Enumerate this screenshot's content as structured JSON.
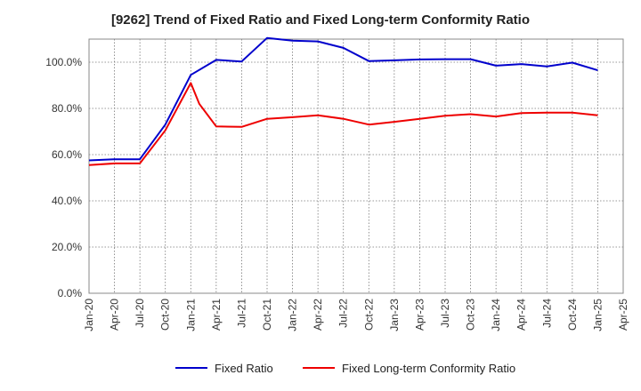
{
  "chart_data": {
    "type": "line",
    "title": "[9262]  Trend of Fixed Ratio and Fixed Long-term Conformity Ratio",
    "xlabel": "",
    "ylabel": "",
    "ylim": [
      0,
      110
    ],
    "yticks": [
      0,
      20,
      40,
      60,
      80,
      100
    ],
    "ytick_labels": [
      "0.0%",
      "20.0%",
      "40.0%",
      "60.0%",
      "80.0%",
      "100.0%"
    ],
    "xticks": [
      "Jan-20",
      "Apr-20",
      "Jul-20",
      "Oct-20",
      "Jan-21",
      "Apr-21",
      "Jul-21",
      "Oct-21",
      "Jan-22",
      "Apr-22",
      "Jul-22",
      "Oct-22",
      "Jan-23",
      "Apr-23",
      "Jul-23",
      "Oct-23",
      "Jan-24",
      "Apr-24",
      "Jul-24",
      "Oct-24",
      "Jan-25",
      "Apr-25"
    ],
    "grid": true,
    "legend_position": "bottom",
    "series": [
      {
        "name": "Fixed Ratio",
        "color": "#0000cc",
        "points": [
          [
            "Jan-20",
            57.5
          ],
          [
            "Apr-20",
            58.0
          ],
          [
            "Jul-20",
            58.0
          ],
          [
            "Oct-20",
            73.0
          ],
          [
            "Jan-21",
            94.5
          ],
          [
            "Apr-21",
            101.0
          ],
          [
            "Jul-21",
            100.3
          ],
          [
            "Oct-21",
            110.5
          ],
          [
            "Jan-22",
            109.3
          ],
          [
            "Apr-22",
            109.0
          ],
          [
            "Jul-22",
            106.2
          ],
          [
            "Oct-22",
            100.5
          ],
          [
            "Jan-23",
            100.8
          ],
          [
            "Apr-23",
            101.2
          ],
          [
            "Jul-23",
            101.3
          ],
          [
            "Oct-23",
            101.3
          ],
          [
            "Jan-24",
            98.5
          ],
          [
            "Apr-24",
            99.2
          ],
          [
            "Jul-24",
            98.2
          ],
          [
            "Oct-24",
            99.8
          ],
          [
            "Jan-25",
            96.5
          ]
        ]
      },
      {
        "name": "Fixed Long-term Conformity Ratio",
        "color": "#ee0000",
        "points": [
          [
            "Jan-20",
            55.5
          ],
          [
            "Apr-20",
            56.2
          ],
          [
            "Jul-20",
            56.2
          ],
          [
            "Oct-20",
            70.5
          ],
          [
            "Jan-21",
            91.0
          ],
          [
            "Feb-21",
            82.0
          ],
          [
            "Apr-21",
            72.2
          ],
          [
            "Jul-21",
            72.0
          ],
          [
            "Oct-21",
            75.5
          ],
          [
            "Jan-22",
            76.2
          ],
          [
            "Apr-22",
            77.0
          ],
          [
            "Jul-22",
            75.5
          ],
          [
            "Oct-22",
            73.0
          ],
          [
            "Jan-23",
            74.2
          ],
          [
            "Apr-23",
            75.5
          ],
          [
            "Jul-23",
            76.8
          ],
          [
            "Oct-23",
            77.5
          ],
          [
            "Jan-24",
            76.5
          ],
          [
            "Apr-24",
            78.0
          ],
          [
            "Jul-24",
            78.2
          ],
          [
            "Oct-24",
            78.2
          ],
          [
            "Jan-25",
            77.0
          ]
        ]
      }
    ]
  }
}
